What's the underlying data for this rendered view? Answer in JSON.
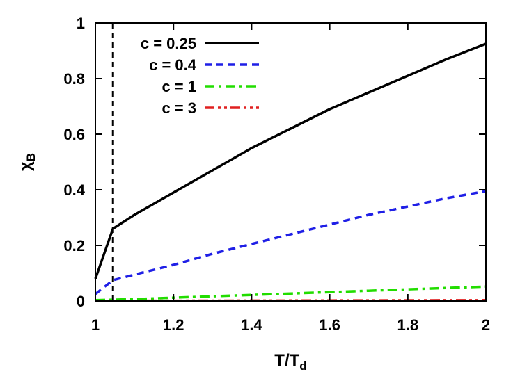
{
  "chart_data": {
    "type": "line",
    "xlabel": "T/T",
    "xlabel_sub": "d",
    "ylabel": "χ",
    "ylabel_sub": "B",
    "xlim": [
      1,
      2
    ],
    "ylim": [
      0,
      1
    ],
    "xticks": [
      1,
      1.2,
      1.4,
      1.6,
      1.8,
      2
    ],
    "xtick_labels": [
      "1",
      "1.2",
      "1.4",
      "1.6",
      "1.8",
      "2"
    ],
    "yticks": [
      0,
      0.2,
      0.4,
      0.6,
      0.8,
      1
    ],
    "ytick_labels": [
      "0",
      "0.2",
      "0.4",
      "0.6",
      "0.8",
      "1"
    ],
    "grid": false,
    "legend_position": "top-left",
    "vertical_line": {
      "x": 1.045,
      "color": "#000000",
      "style": "dashed"
    },
    "series": [
      {
        "name": "c = 0.25",
        "color": "#000000",
        "style": "solid",
        "x": [
          1.0,
          1.045,
          1.1,
          1.2,
          1.3,
          1.4,
          1.5,
          1.6,
          1.7,
          1.8,
          1.9,
          2.0
        ],
        "y": [
          0.08,
          0.26,
          0.31,
          0.39,
          0.47,
          0.55,
          0.62,
          0.69,
          0.75,
          0.81,
          0.87,
          0.925
        ]
      },
      {
        "name": "c = 0.4",
        "color": "#1f1fe6",
        "style": "dashed",
        "x": [
          1.0,
          1.045,
          1.1,
          1.2,
          1.3,
          1.4,
          1.5,
          1.6,
          1.7,
          1.8,
          1.9,
          2.0
        ],
        "y": [
          0.025,
          0.075,
          0.095,
          0.13,
          0.17,
          0.205,
          0.24,
          0.275,
          0.31,
          0.34,
          0.37,
          0.395
        ]
      },
      {
        "name": "c = 1",
        "color": "#22dd00",
        "style": "dashdot",
        "x": [
          1.0,
          1.1,
          1.2,
          1.3,
          1.4,
          1.5,
          1.6,
          1.7,
          1.8,
          1.9,
          2.0
        ],
        "y": [
          0.003,
          0.007,
          0.012,
          0.017,
          0.022,
          0.027,
          0.032,
          0.037,
          0.042,
          0.047,
          0.052
        ]
      },
      {
        "name": "c = 3",
        "color": "#e02020",
        "style": "dashdotdot",
        "x": [
          1.0,
          1.2,
          1.4,
          1.6,
          1.8,
          2.0
        ],
        "y": [
          0.0005,
          0.001,
          0.0015,
          0.002,
          0.0025,
          0.003
        ]
      }
    ]
  }
}
